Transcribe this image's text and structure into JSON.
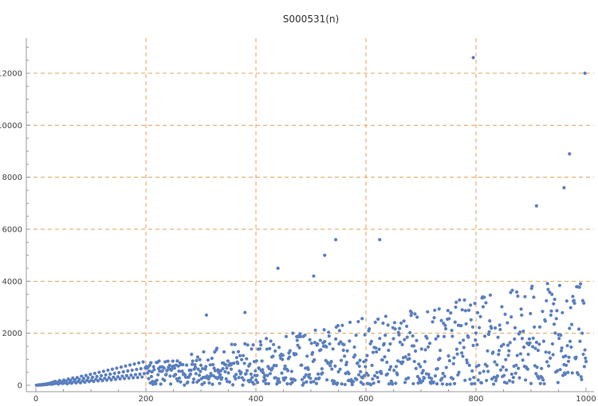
{
  "chart_data": {
    "type": "scatter",
    "title": "S000531(n)",
    "xlabel": "",
    "ylabel": "",
    "xlim": [
      0,
      1000
    ],
    "ylim": [
      0,
      13000
    ],
    "x_ticks": [
      0,
      200,
      400,
      600,
      800,
      1000
    ],
    "y_ticks": [
      0,
      2000,
      4000,
      6000,
      8000,
      10000,
      12000
    ],
    "grid": true,
    "grid_x": [
      200,
      400,
      600,
      800
    ],
    "grid_y": [
      2000,
      4000,
      6000,
      8000,
      10000,
      12000
    ],
    "point_color": "#5b7fbf",
    "grid_color": "#e3a25a",
    "outliers": [
      {
        "x": 795,
        "y": 12600
      },
      {
        "x": 998,
        "y": 12000
      },
      {
        "x": 970,
        "y": 8900
      },
      {
        "x": 960,
        "y": 7600
      },
      {
        "x": 910,
        "y": 6900
      },
      {
        "x": 545,
        "y": 5600
      },
      {
        "x": 625,
        "y": 5600
      },
      {
        "x": 525,
        "y": 5000
      },
      {
        "x": 440,
        "y": 4500
      },
      {
        "x": 505,
        "y": 4200
      },
      {
        "x": 310,
        "y": 2700
      },
      {
        "x": 380,
        "y": 2800
      }
    ],
    "series_main": [
      {
        "x": 1,
        "y": 2
      },
      {
        "x": 3,
        "y": 10
      },
      {
        "x": 5,
        "y": 8
      },
      {
        "x": 7,
        "y": 20
      },
      {
        "x": 9,
        "y": 12
      },
      {
        "x": 11,
        "y": 30
      },
      {
        "x": 13,
        "y": 18
      },
      {
        "x": 15,
        "y": 40
      },
      {
        "x": 17,
        "y": 25
      },
      {
        "x": 19,
        "y": 55
      },
      {
        "x": 21,
        "y": 35
      },
      {
        "x": 23,
        "y": 70
      },
      {
        "x": 25,
        "y": 50
      },
      {
        "x": 27,
        "y": 90
      },
      {
        "x": 29,
        "y": 40
      },
      {
        "x": 31,
        "y": 120
      },
      {
        "x": 33,
        "y": 60
      },
      {
        "x": 35,
        "y": 150
      },
      {
        "x": 37,
        "y": 80
      },
      {
        "x": 39,
        "y": 110
      },
      {
        "x": 41,
        "y": 50
      },
      {
        "x": 43,
        "y": 180
      },
      {
        "x": 45,
        "y": 90
      },
      {
        "x": 47,
        "y": 130
      },
      {
        "x": 49,
        "y": 70
      },
      {
        "x": 51,
        "y": 200
      },
      {
        "x": 53,
        "y": 100
      },
      {
        "x": 55,
        "y": 160
      },
      {
        "x": 57,
        "y": 60
      },
      {
        "x": 59,
        "y": 240
      },
      {
        "x": 61,
        "y": 110
      },
      {
        "x": 63,
        "y": 190
      },
      {
        "x": 65,
        "y": 80
      },
      {
        "x": 67,
        "y": 280
      },
      {
        "x": 69,
        "y": 140
      },
      {
        "x": 71,
        "y": 210
      },
      {
        "x": 73,
        "y": 90
      },
      {
        "x": 75,
        "y": 300
      },
      {
        "x": 77,
        "y": 150
      },
      {
        "x": 79,
        "y": 230
      },
      {
        "x": 81,
        "y": 100
      },
      {
        "x": 83,
        "y": 350
      },
      {
        "x": 85,
        "y": 170
      },
      {
        "x": 87,
        "y": 260
      },
      {
        "x": 89,
        "y": 120
      },
      {
        "x": 91,
        "y": 380
      },
      {
        "x": 93,
        "y": 190
      },
      {
        "x": 95,
        "y": 290
      },
      {
        "x": 97,
        "y": 140
      },
      {
        "x": 99,
        "y": 420
      },
      {
        "x": 101,
        "y": 200
      },
      {
        "x": 103,
        "y": 310
      },
      {
        "x": 105,
        "y": 150
      },
      {
        "x": 107,
        "y": 460
      },
      {
        "x": 109,
        "y": 230
      },
      {
        "x": 111,
        "y": 340
      },
      {
        "x": 113,
        "y": 170
      },
      {
        "x": 115,
        "y": 500
      },
      {
        "x": 117,
        "y": 250
      },
      {
        "x": 119,
        "y": 370
      },
      {
        "x": 121,
        "y": 180
      },
      {
        "x": 123,
        "y": 540
      },
      {
        "x": 125,
        "y": 270
      },
      {
        "x": 127,
        "y": 400
      },
      {
        "x": 129,
        "y": 200
      },
      {
        "x": 131,
        "y": 580
      },
      {
        "x": 133,
        "y": 290
      },
      {
        "x": 135,
        "y": 430
      },
      {
        "x": 137,
        "y": 210
      },
      {
        "x": 139,
        "y": 620
      },
      {
        "x": 141,
        "y": 310
      },
      {
        "x": 143,
        "y": 460
      },
      {
        "x": 145,
        "y": 230
      },
      {
        "x": 147,
        "y": 660
      },
      {
        "x": 149,
        "y": 330
      },
      {
        "x": 151,
        "y": 490
      },
      {
        "x": 153,
        "y": 250
      },
      {
        "x": 155,
        "y": 700
      },
      {
        "x": 157,
        "y": 350
      },
      {
        "x": 159,
        "y": 520
      },
      {
        "x": 161,
        "y": 260
      },
      {
        "x": 163,
        "y": 740
      },
      {
        "x": 165,
        "y": 370
      },
      {
        "x": 167,
        "y": 550
      },
      {
        "x": 169,
        "y": 280
      },
      {
        "x": 171,
        "y": 780
      },
      {
        "x": 173,
        "y": 390
      },
      {
        "x": 175,
        "y": 580
      },
      {
        "x": 177,
        "y": 290
      },
      {
        "x": 179,
        "y": 820
      },
      {
        "x": 181,
        "y": 410
      },
      {
        "x": 183,
        "y": 610
      },
      {
        "x": 185,
        "y": 300
      },
      {
        "x": 187,
        "y": 860
      },
      {
        "x": 189,
        "y": 430
      },
      {
        "x": 191,
        "y": 640
      },
      {
        "x": 193,
        "y": 320
      },
      {
        "x": 195,
        "y": 900
      },
      {
        "x": 197,
        "y": 450
      },
      {
        "x": 199,
        "y": 670
      }
    ]
  }
}
